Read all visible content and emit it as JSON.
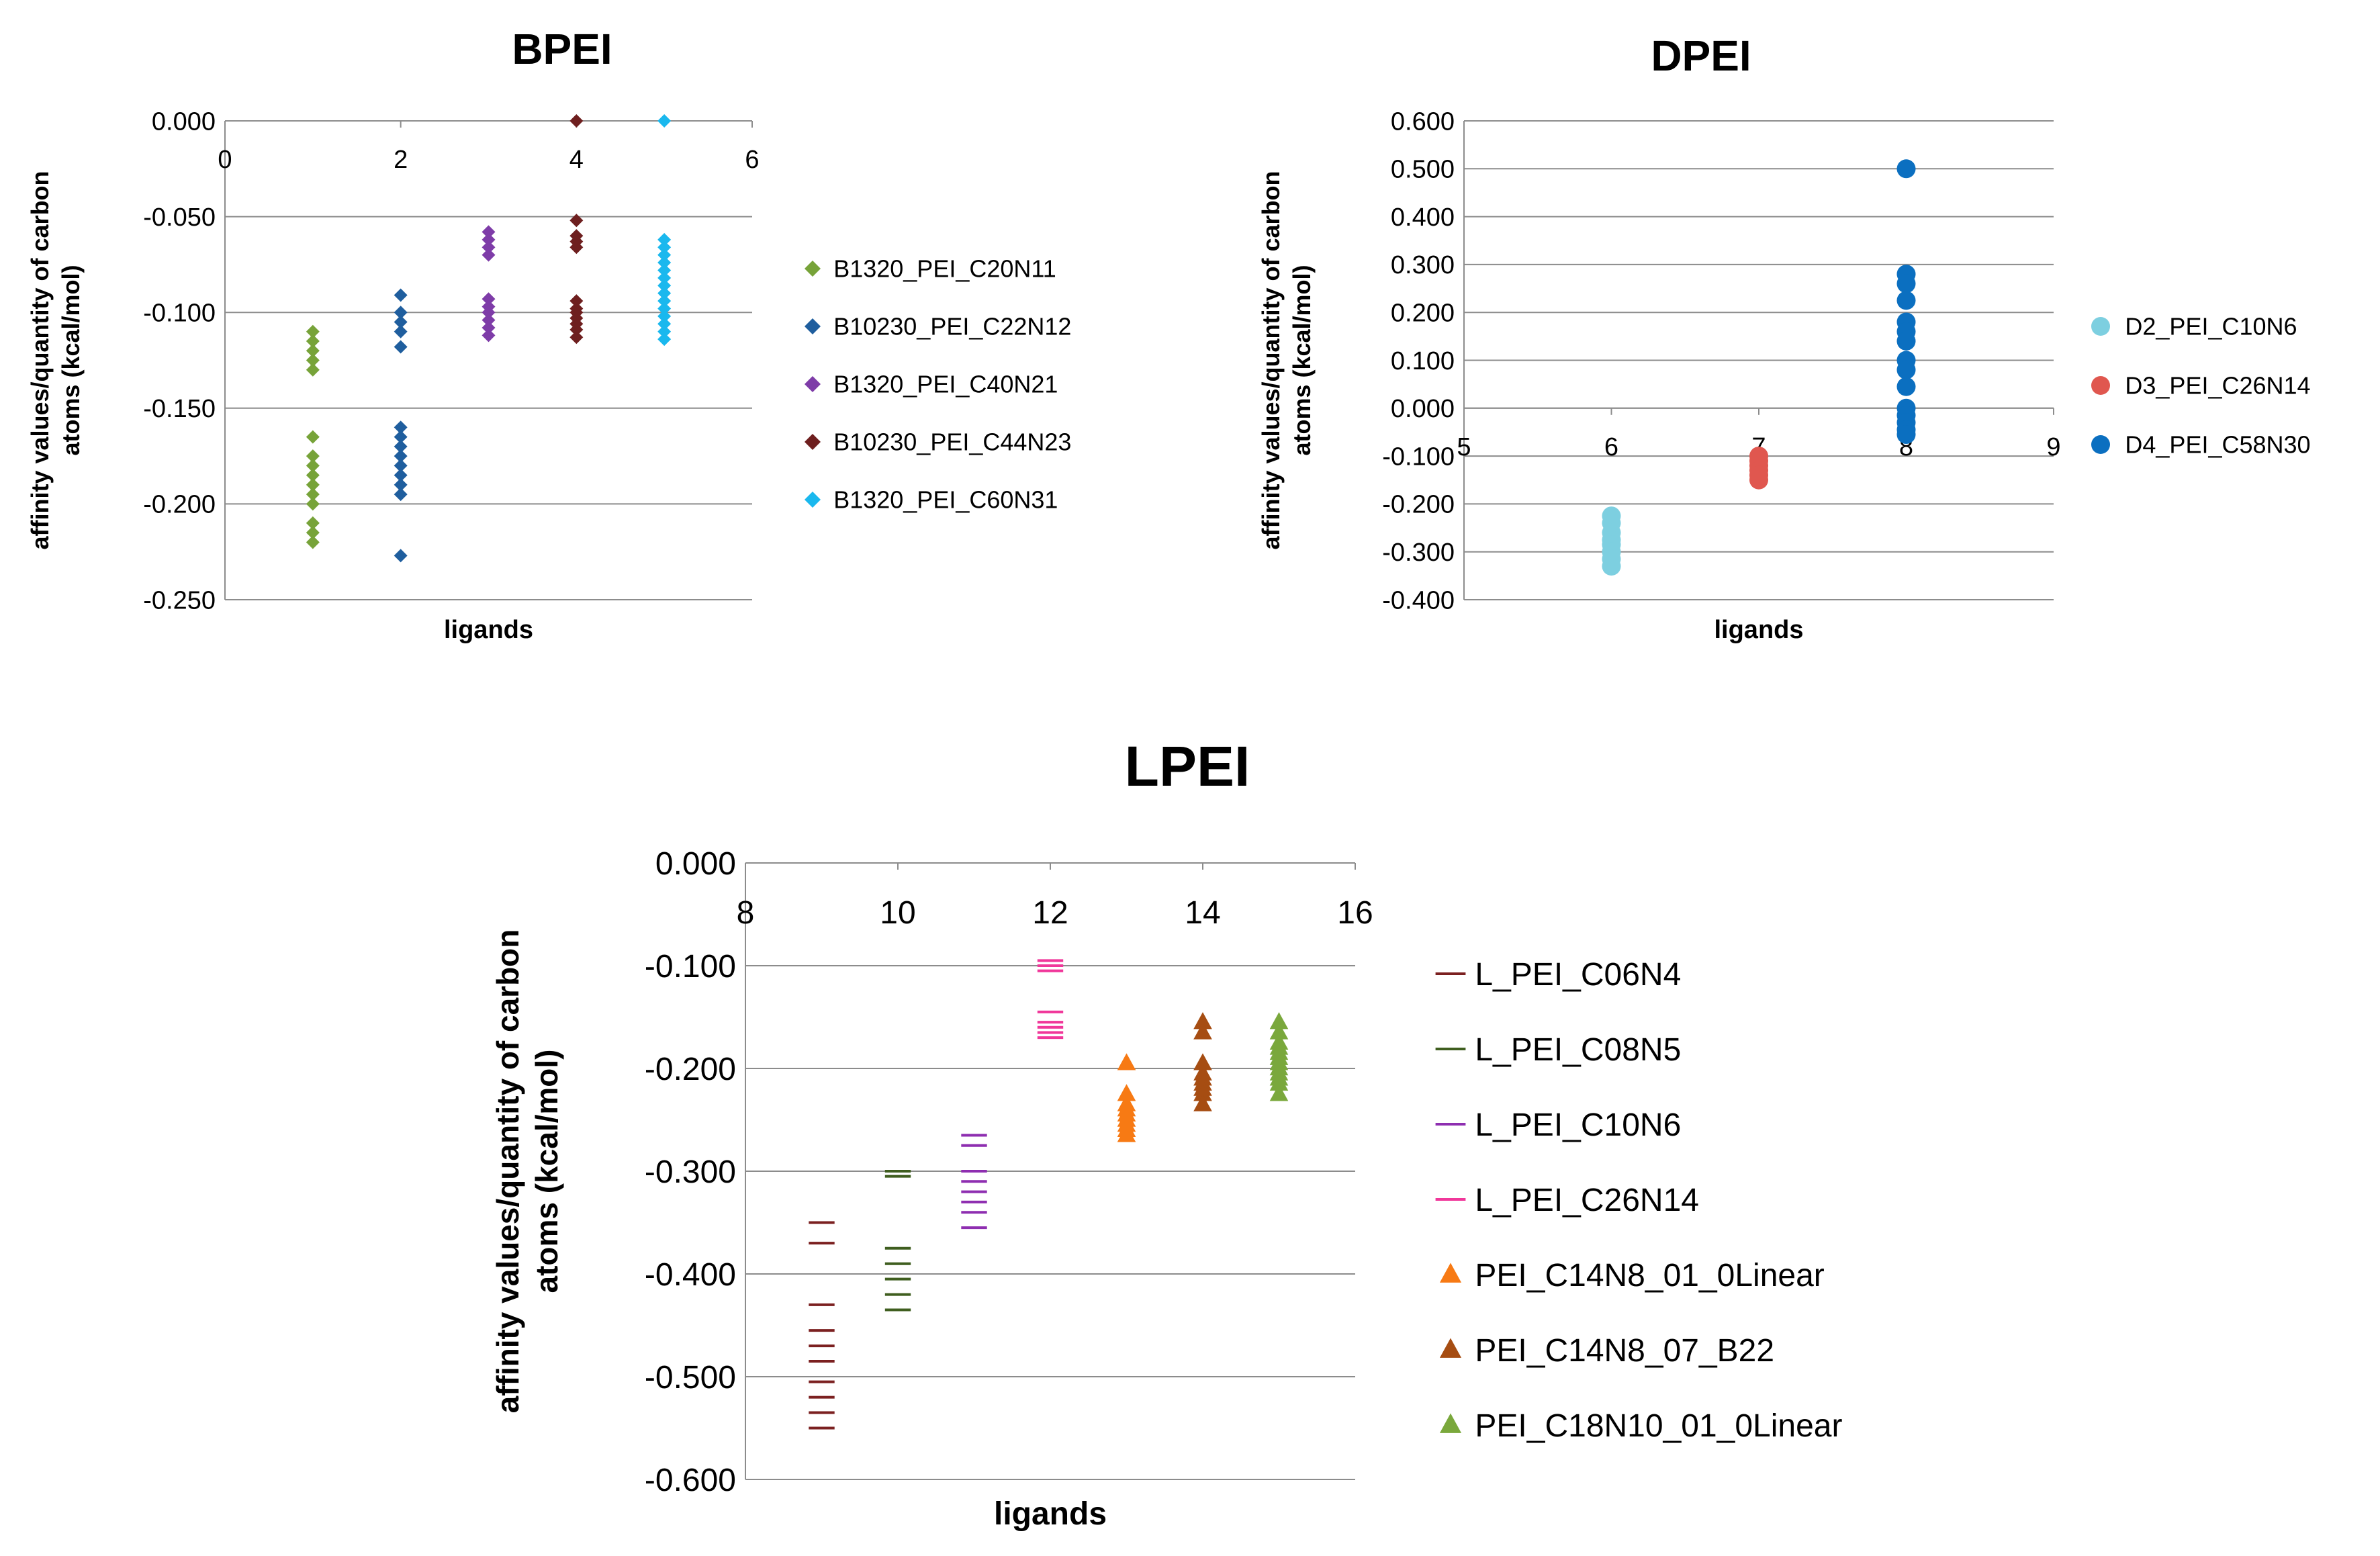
{
  "chart_data": [
    {
      "id": "bpei",
      "type": "scatter",
      "title": "BPEI",
      "xlabel": "ligands",
      "ylabel": "affinity values/quantity of carbon atoms (kcal/mol)",
      "ylabel_lines": [
        "affinity values/quantity of carbon",
        "atoms (kcal/mol)"
      ],
      "xlim": [
        0,
        6
      ],
      "ylim": [
        -0.25,
        0.0
      ],
      "x_ticks": [
        "0",
        "2",
        "4",
        "6"
      ],
      "x_tick_values": [
        0,
        2,
        4,
        6
      ],
      "y_ticks": [
        "0.000",
        "-0.050",
        "-0.100",
        "-0.150",
        "-0.200",
        "-0.250"
      ],
      "y_tick_values": [
        0.0,
        -0.05,
        -0.1,
        -0.15,
        -0.2,
        -0.25
      ],
      "grid": true,
      "legend_position": "right",
      "series": [
        {
          "name": "B1320_PEI_C20N11",
          "marker": "diamond",
          "color": "#77A339",
          "x": 1,
          "y": [
            -0.11,
            -0.115,
            -0.12,
            -0.125,
            -0.13,
            -0.165,
            -0.175,
            -0.18,
            -0.185,
            -0.19,
            -0.195,
            -0.2,
            -0.21,
            -0.215,
            -0.22
          ]
        },
        {
          "name": "B10230_PEI_C22N12",
          "marker": "diamond",
          "color": "#1F5E9E",
          "x": 2,
          "y": [
            -0.091,
            -0.1,
            -0.105,
            -0.11,
            -0.118,
            -0.16,
            -0.165,
            -0.17,
            -0.175,
            -0.18,
            -0.185,
            -0.19,
            -0.195,
            -0.227
          ]
        },
        {
          "name": "B1320_PEI_C40N21",
          "marker": "diamond",
          "color": "#7E3CA8",
          "x": 3,
          "y": [
            -0.058,
            -0.062,
            -0.066,
            -0.07,
            -0.093,
            -0.097,
            -0.1,
            -0.104,
            -0.108,
            -0.112
          ]
        },
        {
          "name": "B10230_PEI_C44N23",
          "marker": "diamond",
          "color": "#6E1F1F",
          "x": 4,
          "y": [
            0.0,
            -0.052,
            -0.06,
            -0.063,
            -0.066,
            -0.094,
            -0.098,
            -0.1,
            -0.103,
            -0.106,
            -0.109,
            -0.113
          ]
        },
        {
          "name": "B1320_PEI_C60N31",
          "marker": "diamond",
          "color": "#1AB8EE",
          "x": 5,
          "y": [
            0.0,
            -0.062,
            -0.066,
            -0.07,
            -0.074,
            -0.078,
            -0.082,
            -0.086,
            -0.09,
            -0.094,
            -0.098,
            -0.102,
            -0.106,
            -0.11,
            -0.114
          ]
        }
      ]
    },
    {
      "id": "dpei",
      "type": "scatter",
      "title": "DPEI",
      "xlabel": "ligands",
      "ylabel": "affinity values/quantity of carbon atoms (kcal/mol)",
      "ylabel_lines": [
        "affinity values/quantity of carbon",
        "atoms (kcal/mol)"
      ],
      "xlim": [
        5,
        9
      ],
      "ylim": [
        -0.4,
        0.6
      ],
      "x_ticks": [
        "5",
        "6",
        "7",
        "8",
        "9"
      ],
      "x_tick_values": [
        5,
        6,
        7,
        8,
        9
      ],
      "y_ticks": [
        "0.600",
        "0.500",
        "0.400",
        "0.300",
        "0.200",
        "0.100",
        "0.000",
        "-0.100",
        "-0.200",
        "-0.300",
        "-0.400"
      ],
      "y_tick_values": [
        0.6,
        0.5,
        0.4,
        0.3,
        0.2,
        0.1,
        0.0,
        -0.1,
        -0.2,
        -0.3,
        -0.4
      ],
      "grid": true,
      "legend_position": "right",
      "series": [
        {
          "name": "D2_PEI_C10N6",
          "marker": "circle",
          "color": "#7DCFE0",
          "x": 6,
          "y": [
            -0.225,
            -0.24,
            -0.26,
            -0.275,
            -0.285,
            -0.3,
            -0.315,
            -0.33
          ]
        },
        {
          "name": "D3_PEI_C26N14",
          "marker": "circle",
          "color": "#E0574F",
          "x": 7,
          "y": [
            -0.1,
            -0.11,
            -0.12,
            -0.13,
            -0.14,
            -0.15
          ]
        },
        {
          "name": "D4_PEI_C58N30",
          "marker": "circle",
          "color": "#0B6FC0",
          "x": 8,
          "y": [
            0.5,
            0.28,
            0.26,
            0.225,
            0.18,
            0.16,
            0.14,
            0.1,
            0.08,
            0.045,
            0.0,
            -0.015,
            -0.03,
            -0.045,
            -0.055
          ]
        }
      ]
    },
    {
      "id": "lpei",
      "type": "scatter",
      "title": "LPEI",
      "xlabel": "ligands",
      "ylabel": "affinity values/quantity of carbon atoms (kcal/mol)",
      "ylabel_lines": [
        "affinity values/quantity of carbon",
        "atoms (kcal/mol)"
      ],
      "xlim": [
        8,
        16
      ],
      "ylim": [
        -0.6,
        0.0
      ],
      "x_ticks": [
        "8",
        "10",
        "12",
        "14",
        "16"
      ],
      "x_tick_values": [
        8,
        10,
        12,
        14,
        16
      ],
      "y_ticks": [
        "0.000",
        "-0.100",
        "-0.200",
        "-0.300",
        "-0.400",
        "-0.500",
        "-0.600"
      ],
      "y_tick_values": [
        0.0,
        -0.1,
        -0.2,
        -0.3,
        -0.4,
        -0.5,
        -0.6
      ],
      "grid": true,
      "legend_position": "right",
      "series": [
        {
          "name": "L_PEI_C06N4",
          "marker": "dash",
          "color": "#7B2020",
          "x": 9,
          "y": [
            -0.35,
            -0.37,
            -0.43,
            -0.455,
            -0.47,
            -0.485,
            -0.505,
            -0.52,
            -0.535,
            -0.55
          ]
        },
        {
          "name": "L_PEI_C08N5",
          "marker": "dash",
          "color": "#3F5E1F",
          "x": 10,
          "y": [
            -0.3,
            -0.305,
            -0.375,
            -0.39,
            -0.405,
            -0.42,
            -0.435
          ]
        },
        {
          "name": "L_PEI_C10N6",
          "marker": "dash",
          "color": "#8E2EB0",
          "x": 11,
          "y": [
            -0.265,
            -0.275,
            -0.3,
            -0.31,
            -0.32,
            -0.33,
            -0.34,
            -0.355
          ]
        },
        {
          "name": "L_PEI_C26N14",
          "marker": "dash",
          "color": "#F0379A",
          "x": 12,
          "y": [
            -0.095,
            -0.1,
            -0.105,
            -0.145,
            -0.155,
            -0.16,
            -0.165,
            -0.17
          ]
        },
        {
          "name": "PEI_C14N8_01_0Linear",
          "marker": "triangle",
          "color": "#F77A14",
          "x": 13,
          "y": [
            -0.195,
            -0.225,
            -0.235,
            -0.24,
            -0.245,
            -0.25,
            -0.255,
            -0.26,
            -0.265
          ]
        },
        {
          "name": "PEI_C14N8_07_B22",
          "marker": "triangle",
          "color": "#A64D12",
          "x": 14,
          "y": [
            -0.155,
            -0.165,
            -0.195,
            -0.205,
            -0.21,
            -0.215,
            -0.22,
            -0.225,
            -0.235
          ]
        },
        {
          "name": "PEI_C18N10_01_0Linear",
          "marker": "triangle",
          "color": "#7AA83C",
          "x": 15,
          "y": [
            -0.155,
            -0.165,
            -0.175,
            -0.18,
            -0.185,
            -0.19,
            -0.195,
            -0.2,
            -0.205,
            -0.21,
            -0.215,
            -0.225
          ]
        }
      ]
    }
  ]
}
